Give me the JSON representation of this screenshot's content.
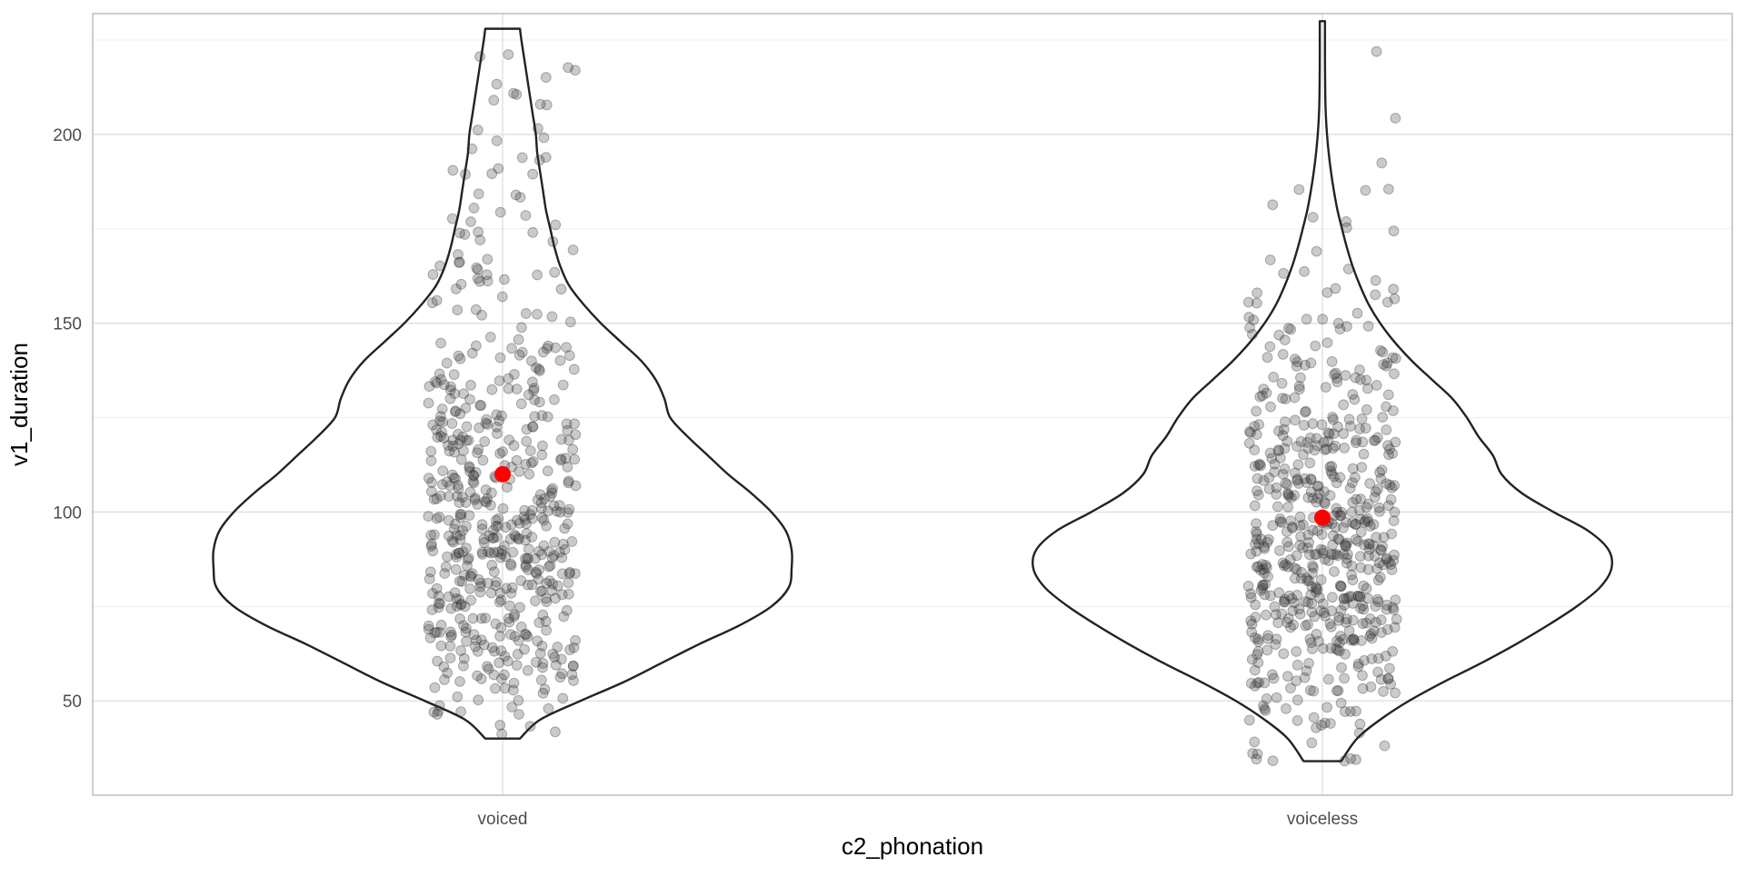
{
  "chart_data": {
    "type": "violin",
    "title": "",
    "xlabel": "c2_phonation",
    "ylabel": "v1_duration",
    "categories": [
      "voiced",
      "voiceless"
    ],
    "ylim": [
      25,
      232
    ],
    "yticks": [
      50,
      100,
      150,
      200
    ],
    "grid": true,
    "legend": "none",
    "colors": {
      "outline": "#222222",
      "points": "#000000",
      "point_alpha": 0.22,
      "mean": "#ff0000",
      "grid": "#dedede",
      "border": "#b3b3b3"
    },
    "groups": [
      {
        "name": "voiced",
        "mean": 110,
        "min": 40,
        "max": 228,
        "n_points": 560,
        "density": [
          [
            40,
            0.06
          ],
          [
            45,
            0.13
          ],
          [
            50,
            0.27
          ],
          [
            55,
            0.42
          ],
          [
            60,
            0.55
          ],
          [
            65,
            0.68
          ],
          [
            70,
            0.82
          ],
          [
            75,
            0.93
          ],
          [
            80,
            0.99
          ],
          [
            85,
            1.0
          ],
          [
            90,
            1.0
          ],
          [
            95,
            0.98
          ],
          [
            100,
            0.93
          ],
          [
            105,
            0.86
          ],
          [
            110,
            0.78
          ],
          [
            115,
            0.71
          ],
          [
            120,
            0.64
          ],
          [
            125,
            0.58
          ],
          [
            130,
            0.56
          ],
          [
            135,
            0.53
          ],
          [
            140,
            0.48
          ],
          [
            145,
            0.41
          ],
          [
            150,
            0.34
          ],
          [
            155,
            0.28
          ],
          [
            160,
            0.23
          ],
          [
            165,
            0.2
          ],
          [
            170,
            0.18
          ],
          [
            175,
            0.165
          ],
          [
            180,
            0.15
          ],
          [
            185,
            0.14
          ],
          [
            190,
            0.13
          ],
          [
            195,
            0.12
          ],
          [
            200,
            0.115
          ],
          [
            205,
            0.105
          ],
          [
            210,
            0.095
          ],
          [
            215,
            0.085
          ],
          [
            220,
            0.075
          ],
          [
            225,
            0.065
          ],
          [
            228,
            0.06
          ]
        ]
      },
      {
        "name": "voiceless",
        "mean": 98.5,
        "min": 34,
        "max": 230,
        "n_points": 600,
        "density": [
          [
            34,
            0.065
          ],
          [
            40,
            0.12
          ],
          [
            45,
            0.2
          ],
          [
            50,
            0.3
          ],
          [
            55,
            0.42
          ],
          [
            60,
            0.55
          ],
          [
            65,
            0.67
          ],
          [
            70,
            0.78
          ],
          [
            75,
            0.88
          ],
          [
            80,
            0.96
          ],
          [
            85,
            1.0
          ],
          [
            90,
            0.99
          ],
          [
            95,
            0.92
          ],
          [
            100,
            0.8
          ],
          [
            105,
            0.69
          ],
          [
            110,
            0.62
          ],
          [
            115,
            0.59
          ],
          [
            120,
            0.54
          ],
          [
            125,
            0.5
          ],
          [
            130,
            0.45
          ],
          [
            135,
            0.38
          ],
          [
            140,
            0.31
          ],
          [
            145,
            0.25
          ],
          [
            150,
            0.2
          ],
          [
            155,
            0.16
          ],
          [
            160,
            0.13
          ],
          [
            165,
            0.105
          ],
          [
            170,
            0.085
          ],
          [
            175,
            0.068
          ],
          [
            180,
            0.052
          ],
          [
            185,
            0.04
          ],
          [
            190,
            0.03
          ],
          [
            195,
            0.022
          ],
          [
            200,
            0.016
          ],
          [
            205,
            0.012
          ],
          [
            210,
            0.01
          ],
          [
            220,
            0.009
          ],
          [
            230,
            0.009
          ]
        ]
      }
    ]
  }
}
